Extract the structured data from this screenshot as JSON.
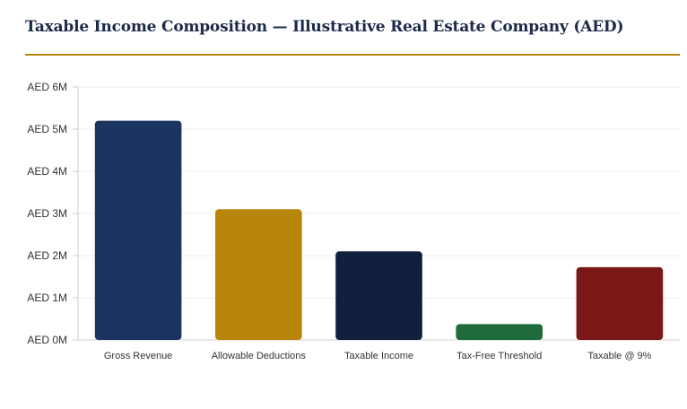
{
  "title": "Taxable Income Composition — Illustrative Real Estate Company (AED)",
  "chart_data": {
    "type": "bar",
    "title": "Taxable Income Composition — Illustrative Real Estate Company (AED)",
    "xlabel": "",
    "ylabel": "",
    "categories": [
      "Gross Revenue",
      "Allowable Deductions",
      "Taxable Income",
      "Tax-Free Threshold",
      "Taxable @ 9%"
    ],
    "values": [
      5200000,
      3100000,
      2100000,
      375000,
      1725000
    ],
    "colors": [
      "#1b3560",
      "#b8860b",
      "#0f1f3d",
      "#1f6b3a",
      "#7a1818"
    ],
    "ylim": [
      0,
      6000000
    ],
    "yticks": [
      0,
      1000000,
      2000000,
      3000000,
      4000000,
      5000000,
      6000000
    ],
    "ytick_labels": [
      "AED 0M",
      "AED 1M",
      "AED 2M",
      "AED 3M",
      "AED 4M",
      "AED 5M",
      "AED 6M"
    ],
    "grid": true,
    "legend": "none"
  }
}
